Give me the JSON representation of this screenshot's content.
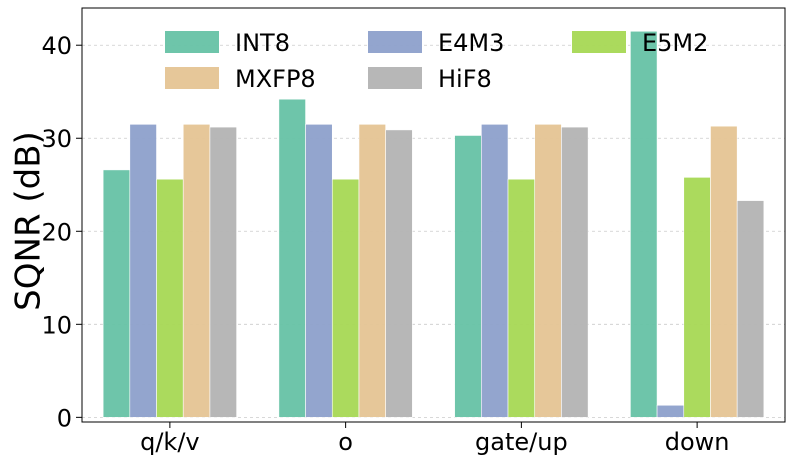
{
  "chart_data": {
    "type": "bar",
    "title": "",
    "xlabel": "",
    "ylabel": "SQNR (dB)",
    "ylim": [
      -0.5,
      44
    ],
    "yticks": [
      0,
      10,
      20,
      30,
      40
    ],
    "grid": "horizontal dashed",
    "legend_position": "top",
    "categories": [
      "q/k/v",
      "o",
      "gate/up",
      "down"
    ],
    "series": [
      {
        "name": "INT8",
        "color": "#66c2a5",
        "values": [
          26.6,
          34.2,
          30.3,
          41.5
        ]
      },
      {
        "name": "E4M3",
        "color": "#8da0cb",
        "values": [
          31.5,
          31.5,
          31.5,
          1.3
        ]
      },
      {
        "name": "E5M2",
        "color": "#a6d854",
        "values": [
          25.6,
          25.6,
          25.6,
          25.8
        ]
      },
      {
        "name": "MXFP8",
        "color": "#e5c494",
        "values": [
          31.5,
          31.5,
          31.5,
          31.3
        ]
      },
      {
        "name": "HiF8",
        "color": "#b3b3b3",
        "values": [
          31.2,
          30.9,
          31.2,
          23.3
        ]
      }
    ]
  }
}
